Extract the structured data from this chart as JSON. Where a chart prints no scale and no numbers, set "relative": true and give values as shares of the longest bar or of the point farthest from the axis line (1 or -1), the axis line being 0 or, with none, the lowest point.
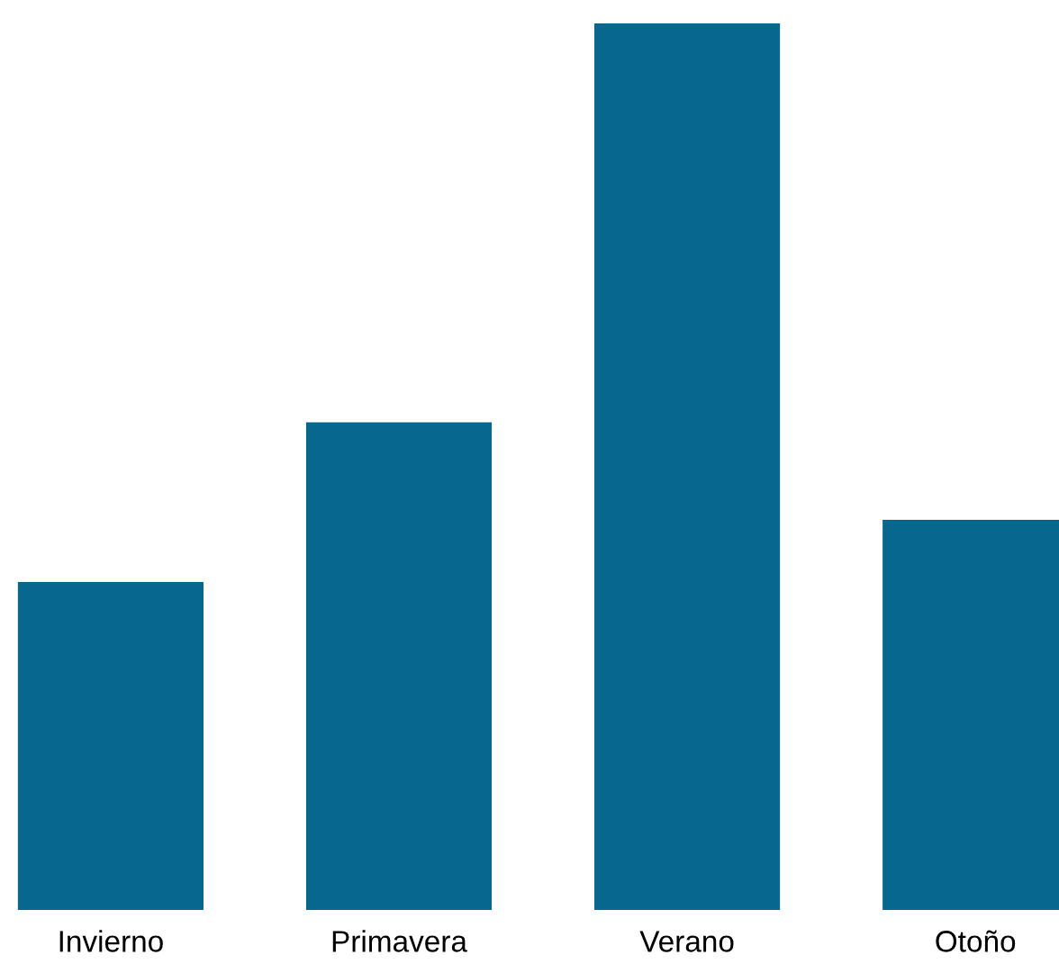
{
  "chart_data": {
    "type": "bar",
    "relative": true,
    "categories": [
      "Invierno",
      "Primavera",
      "Verano",
      "Otoño"
    ],
    "values": [
      0.37,
      0.55,
      1,
      0.44
    ],
    "color": "#07678f"
  }
}
